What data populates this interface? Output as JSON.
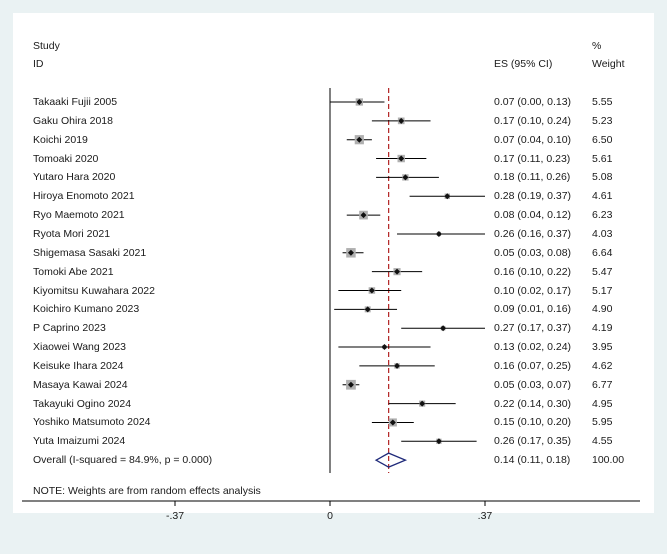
{
  "header": {
    "study_label": "Study",
    "id_label": "ID",
    "es_label": "ES (95% CI)",
    "pct_label": "%",
    "weight_label": "Weight"
  },
  "footer": {
    "note": "NOTE: Weights are from random effects analysis"
  },
  "colors": {
    "panel": "#ffffff",
    "background": "#eaf2f3",
    "overall_line": "#b22222",
    "diamond": "#1f2a7a",
    "box": "#b0b0b0"
  },
  "chart_data": {
    "type": "forest",
    "x_ticks": [
      {
        "value": -0.37,
        "label": "-.37"
      },
      {
        "value": 0,
        "label": "0"
      },
      {
        "value": 0.37,
        "label": ".37"
      }
    ],
    "studies": [
      {
        "id": "Takaaki Fujii 2005",
        "es": 0.07,
        "lo": 0.0,
        "hi": 0.13,
        "es_text": "0.07 (0.00, 0.13)",
        "weight": 5.55,
        "weight_text": "5.55"
      },
      {
        "id": "Gaku Ohira 2018",
        "es": 0.17,
        "lo": 0.1,
        "hi": 0.24,
        "es_text": "0.17 (0.10, 0.24)",
        "weight": 5.23,
        "weight_text": "5.23"
      },
      {
        "id": "Koichi 2019",
        "es": 0.07,
        "lo": 0.04,
        "hi": 0.1,
        "es_text": "0.07 (0.04, 0.10)",
        "weight": 6.5,
        "weight_text": "6.50"
      },
      {
        "id": "Tomoaki 2020",
        "es": 0.17,
        "lo": 0.11,
        "hi": 0.23,
        "es_text": "0.17 (0.11, 0.23)",
        "weight": 5.61,
        "weight_text": "5.61"
      },
      {
        "id": "Yutaro Hara 2020",
        "es": 0.18,
        "lo": 0.11,
        "hi": 0.26,
        "es_text": "0.18 (0.11, 0.26)",
        "weight": 5.08,
        "weight_text": "5.08"
      },
      {
        "id": "Hiroya Enomoto 2021",
        "es": 0.28,
        "lo": 0.19,
        "hi": 0.37,
        "es_text": "0.28 (0.19, 0.37)",
        "weight": 4.61,
        "weight_text": "4.61"
      },
      {
        "id": "Ryo Maemoto 2021",
        "es": 0.08,
        "lo": 0.04,
        "hi": 0.12,
        "es_text": "0.08 (0.04, 0.12)",
        "weight": 6.23,
        "weight_text": "6.23"
      },
      {
        "id": "Ryota Mori 2021",
        "es": 0.26,
        "lo": 0.16,
        "hi": 0.37,
        "es_text": "0.26 (0.16, 0.37)",
        "weight": 4.03,
        "weight_text": "4.03"
      },
      {
        "id": "Shigemasa Sasaki 2021",
        "es": 0.05,
        "lo": 0.03,
        "hi": 0.08,
        "es_text": "0.05 (0.03, 0.08)",
        "weight": 6.64,
        "weight_text": "6.64"
      },
      {
        "id": "Tomoki Abe 2021",
        "es": 0.16,
        "lo": 0.1,
        "hi": 0.22,
        "es_text": "0.16 (0.10, 0.22)",
        "weight": 5.47,
        "weight_text": "5.47"
      },
      {
        "id": "Kiyomitsu Kuwahara 2022",
        "es": 0.1,
        "lo": 0.02,
        "hi": 0.17,
        "es_text": "0.10 (0.02, 0.17)",
        "weight": 5.17,
        "weight_text": "5.17"
      },
      {
        "id": "Koichiro Kumano 2023",
        "es": 0.09,
        "lo": 0.01,
        "hi": 0.16,
        "es_text": "0.09 (0.01, 0.16)",
        "weight": 4.9,
        "weight_text": "4.90"
      },
      {
        "id": "P Caprino 2023",
        "es": 0.27,
        "lo": 0.17,
        "hi": 0.37,
        "es_text": "0.27 (0.17, 0.37)",
        "weight": 4.19,
        "weight_text": "4.19"
      },
      {
        "id": "Xiaowei Wang 2023",
        "es": 0.13,
        "lo": 0.02,
        "hi": 0.24,
        "es_text": "0.13 (0.02, 0.24)",
        "weight": 3.95,
        "weight_text": "3.95"
      },
      {
        "id": "Keisuke Ihara 2024",
        "es": 0.16,
        "lo": 0.07,
        "hi": 0.25,
        "es_text": "0.16 (0.07, 0.25)",
        "weight": 4.62,
        "weight_text": "4.62"
      },
      {
        "id": "Masaya Kawai 2024",
        "es": 0.05,
        "lo": 0.03,
        "hi": 0.07,
        "es_text": "0.05 (0.03, 0.07)",
        "weight": 6.77,
        "weight_text": "6.77"
      },
      {
        "id": "Takayuki Ogino 2024",
        "es": 0.22,
        "lo": 0.14,
        "hi": 0.3,
        "es_text": "0.22 (0.14, 0.30)",
        "weight": 4.95,
        "weight_text": "4.95"
      },
      {
        "id": "Yoshiko Matsumoto 2024",
        "es": 0.15,
        "lo": 0.1,
        "hi": 0.2,
        "es_text": "0.15 (0.10, 0.20)",
        "weight": 5.95,
        "weight_text": "5.95"
      },
      {
        "id": "Yuta Imaizumi 2024",
        "es": 0.26,
        "lo": 0.17,
        "hi": 0.35,
        "es_text": "0.26 (0.17, 0.35)",
        "weight": 4.55,
        "weight_text": "4.55"
      }
    ],
    "overall": {
      "label": "Overall  (I-squared = 84.9%, p = 0.000)",
      "es": 0.14,
      "lo": 0.11,
      "hi": 0.18,
      "es_text": "0.14 (0.11, 0.18)",
      "weight_text": "100.00"
    }
  }
}
